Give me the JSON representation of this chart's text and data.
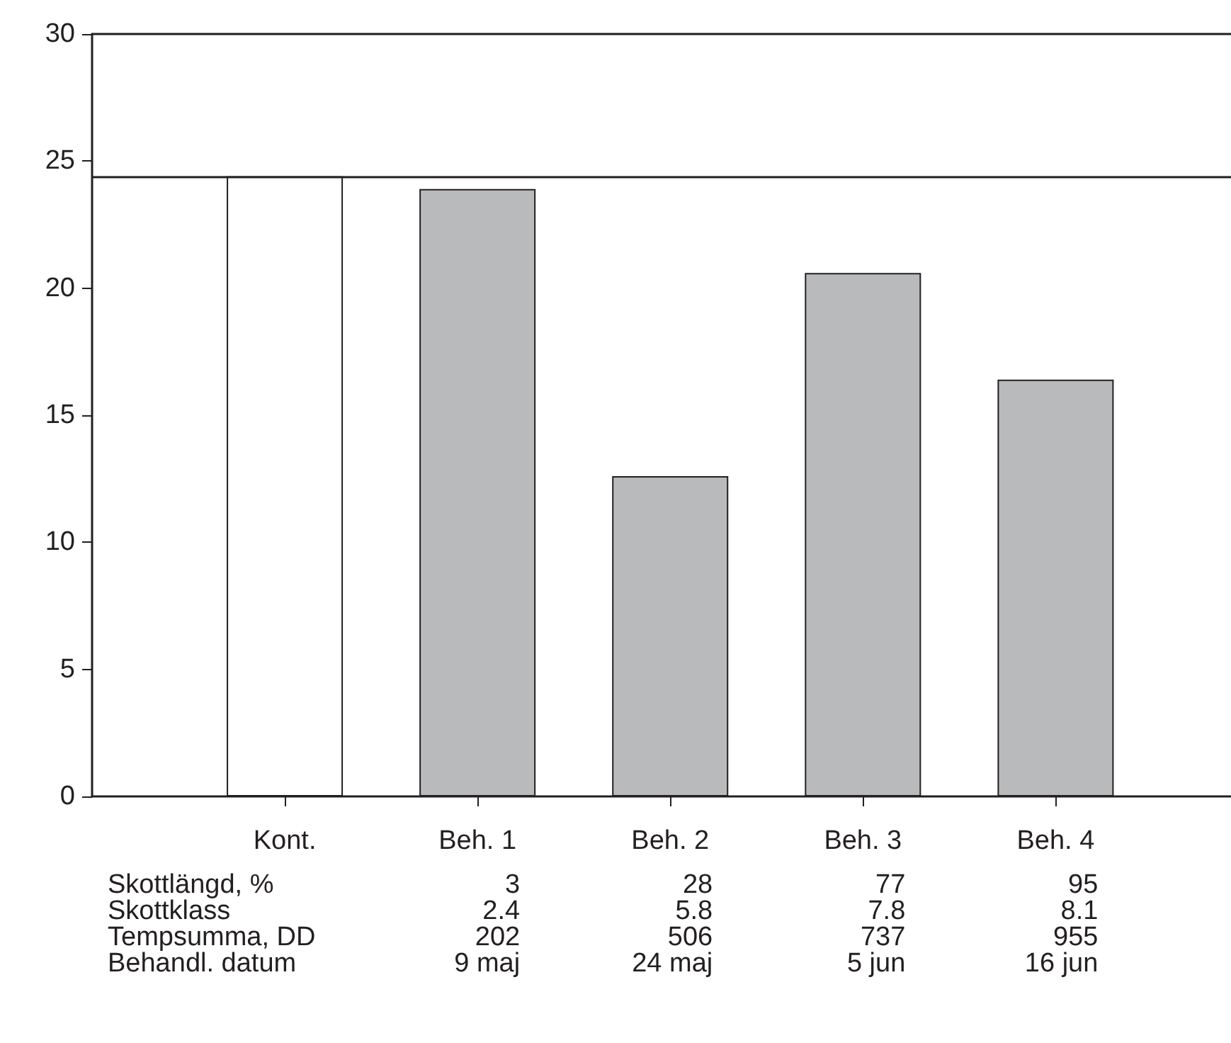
{
  "chart_data": {
    "type": "bar",
    "categories": [
      "Kont.",
      "Beh. 1",
      "Beh. 2",
      "Beh. 3",
      "Beh. 4"
    ],
    "values": [
      24.4,
      23.9,
      12.6,
      20.6,
      16.4
    ],
    "colors": [
      "#ffffff",
      "#b9babc",
      "#b9babc",
      "#b9babc",
      "#b9babc"
    ],
    "ylim": [
      0,
      30
    ],
    "yticks": [
      0,
      5,
      10,
      15,
      20,
      25,
      30
    ],
    "ref_lines": [
      {
        "axis": "y",
        "value": 24.4,
        "color": "#231f20"
      }
    ],
    "annotations": [
      "Skottlängd, %",
      "3",
      "28",
      "77",
      "95",
      "Skottklass",
      "2.4",
      "5.8",
      "7.8",
      "8.1",
      "Tempsumma, DD",
      "202",
      "506",
      "737",
      "955",
      "Behandl. datum",
      "9 maj",
      "24 maj",
      "5 jun",
      "16 jun"
    ],
    "grid": false
  }
}
